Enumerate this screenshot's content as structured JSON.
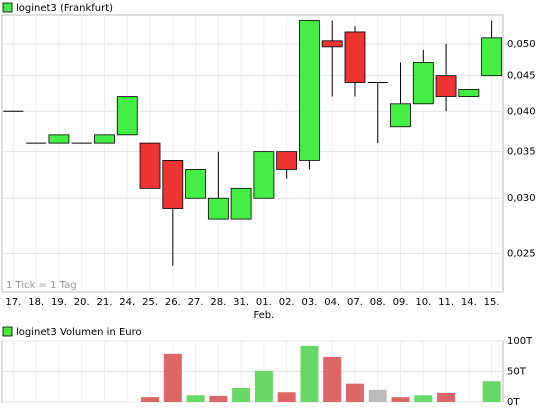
{
  "chart_data": [
    {
      "type": "candlestick",
      "title": "loginet3 (Frankfurt)",
      "note": "1 Tick = 1 Tag",
      "month_label": "Feb.",
      "categories": [
        "17.",
        "18.",
        "19.",
        "20.",
        "21.",
        "24.",
        "25.",
        "26.",
        "27.",
        "28.",
        "31.",
        "01.",
        "02.",
        "03.",
        "04.",
        "07.",
        "08.",
        "09.",
        "10.",
        "11.",
        "14.",
        "15."
      ],
      "open": [
        0.04,
        0.036,
        0.036,
        0.036,
        0.036,
        0.037,
        0.036,
        0.034,
        0.03,
        0.028,
        0.028,
        0.03,
        0.035,
        0.034,
        0.0505,
        0.052,
        0.044,
        0.038,
        0.041,
        0.045,
        0.042,
        0.045
      ],
      "high": [
        0.04,
        0.036,
        0.037,
        0.036,
        0.037,
        0.042,
        0.036,
        0.034,
        0.033,
        0.035,
        0.031,
        0.035,
        0.035,
        0.054,
        0.054,
        0.053,
        0.044,
        0.047,
        0.049,
        0.05,
        0.043,
        0.054
      ],
      "low": [
        0.04,
        0.036,
        0.036,
        0.036,
        0.036,
        0.037,
        0.031,
        0.024,
        0.03,
        0.028,
        0.028,
        0.03,
        0.032,
        0.033,
        0.042,
        0.042,
        0.036,
        0.038,
        0.041,
        0.04,
        0.042,
        0.045
      ],
      "close": [
        0.04,
        0.036,
        0.037,
        0.036,
        0.037,
        0.042,
        0.031,
        0.029,
        0.033,
        0.03,
        0.031,
        0.035,
        0.033,
        0.054,
        0.0495,
        0.044,
        0.044,
        0.041,
        0.047,
        0.042,
        0.043,
        0.051
      ],
      "up_color": "#44ee44",
      "down_color": "#ee3333",
      "log_scale": true,
      "grid": true,
      "ylim": [
        0.022,
        0.055
      ],
      "yticks": [
        {
          "value": 0.025,
          "label": "0,025"
        },
        {
          "value": 0.03,
          "label": "0,030"
        },
        {
          "value": 0.035,
          "label": "0,035"
        },
        {
          "value": 0.04,
          "label": "0,040"
        },
        {
          "value": 0.045,
          "label": "0,045"
        },
        {
          "value": 0.05,
          "label": "0,050"
        }
      ]
    },
    {
      "type": "bar",
      "title": "loginet3 Volumen in Euro",
      "values": [
        0,
        0,
        0,
        0,
        0,
        0,
        8,
        79,
        11,
        10,
        23,
        51,
        16,
        92,
        74,
        30,
        20,
        8,
        11,
        15,
        0,
        34
      ],
      "colors": [
        "#66d866",
        "#66d866",
        "#66d866",
        "#66d866",
        "#66d866",
        "#66d866",
        "#dd6666",
        "#dd6666",
        "#66d866",
        "#dd6666",
        "#66d866",
        "#66d866",
        "#dd6666",
        "#66d866",
        "#dd6666",
        "#dd6666",
        "#bbbbbb",
        "#dd6666",
        "#66d866",
        "#dd6666",
        "#66d866",
        "#66d866"
      ],
      "grid": true,
      "ylim": [
        0,
        100
      ],
      "yticks": [
        {
          "value": 0,
          "label": "0T"
        },
        {
          "value": 50,
          "label": "50T"
        },
        {
          "value": 100,
          "label": "100T"
        }
      ]
    }
  ]
}
